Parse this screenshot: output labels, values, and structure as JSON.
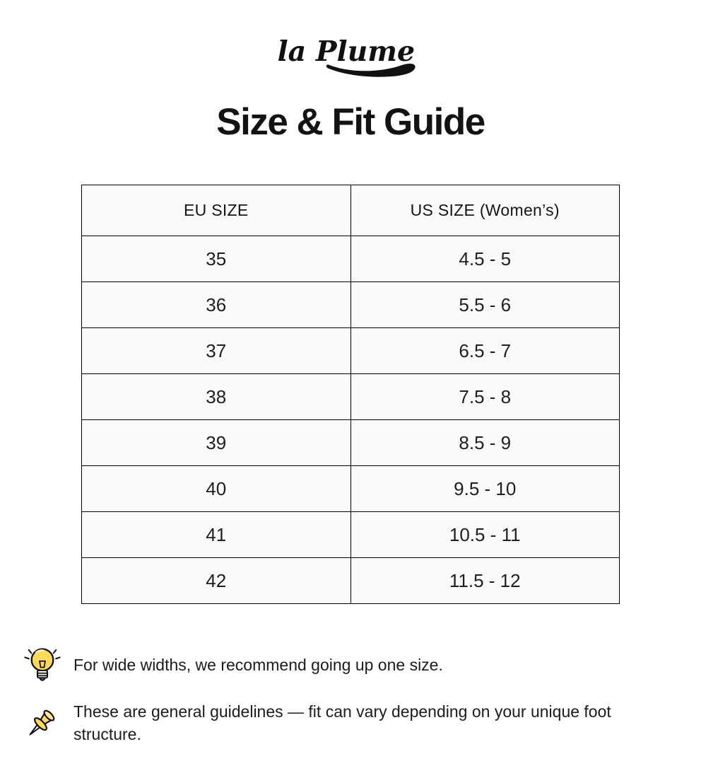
{
  "brand": {
    "logo_text": "la Plume"
  },
  "page": {
    "title": "Size & Fit Guide"
  },
  "size_table": {
    "columns": [
      "EU SIZE",
      "US SIZE (Women’s)"
    ],
    "rows": [
      [
        "35",
        "4.5 - 5"
      ],
      [
        "36",
        "5.5 - 6"
      ],
      [
        "37",
        "6.5 - 7"
      ],
      [
        "38",
        "7.5 - 8"
      ],
      [
        "39",
        "8.5 - 9"
      ],
      [
        "40",
        "9.5 - 10"
      ],
      [
        "41",
        "10.5 - 11"
      ],
      [
        "42",
        "11.5 - 12"
      ]
    ]
  },
  "notes": [
    {
      "icon": "lightbulb-icon",
      "text": "For wide widths, we recommend going up one size."
    },
    {
      "icon": "pushpin-icon",
      "text": "These are general guidelines — fit can vary depending on your unique foot structure."
    }
  ],
  "colors": {
    "logo_ink": "#111111",
    "table_cell_bg": "#fafafa",
    "table_border": "#000000",
    "bulb_yellow": "#ffd95e",
    "pin_yellow": "#ffd861",
    "bulb_tip_purple": "#5c4d9e"
  }
}
